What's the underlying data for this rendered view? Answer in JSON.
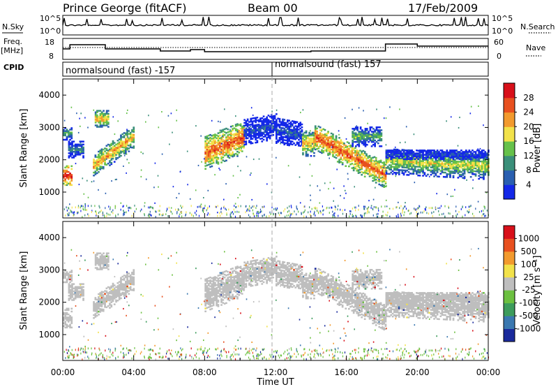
{
  "header": {
    "station": "Prince George (fitACF)",
    "beam": "Beam 00",
    "date": "17/Feb/2009"
  },
  "top_panel": {
    "nsky_label": "N.Sky",
    "nsky_top": "10^5",
    "nsky_bottom": "10^0",
    "nsearch_label": "N.Search",
    "nsearch_top": "10^5",
    "nsearch_bottom": "10^0",
    "freq_label_1": "Freq.",
    "freq_label_2": "[MHz]",
    "freq_top": "18",
    "freq_bottom": "8",
    "nave_label": "Nave",
    "nave_top": "60",
    "nave_bottom": "0",
    "cpid_label": "CPID",
    "cpid_1": "normalsound (fast) -157",
    "cpid_2": "normalsound (fast) 157"
  },
  "chart_data": [
    {
      "type": "heatmap",
      "name": "Power",
      "ylabel": "Slant Range [km]",
      "xlabel": "Time UT",
      "ylim": [
        200,
        4500
      ],
      "xlim_hours": [
        0,
        24
      ],
      "y_ticks": [
        "1000",
        "2000",
        "3000",
        "4000"
      ],
      "x_ticks": [
        "00:00",
        "04:00",
        "08:00",
        "12:00",
        "16:00",
        "20:00",
        "00:00"
      ],
      "colorbar_label": "Power [dB]",
      "colorbar_ticks": [
        "4",
        "8",
        "12",
        "16",
        "20",
        "24",
        "28"
      ],
      "colorbar_colors": [
        "#1428e8",
        "#2a5fb0",
        "#3b8f7a",
        "#66c14a",
        "#f2e24a",
        "#f29a2e",
        "#e8501f",
        "#d8101a"
      ],
      "echo_regions": [
        {
          "start_h": 0.0,
          "end_h": 0.5,
          "center_km": 1500,
          "thickness_km": 300,
          "slope_km_per_h": 0,
          "level": 7
        },
        {
          "start_h": 0.0,
          "end_h": 0.5,
          "center_km": 2800,
          "thickness_km": 200,
          "slope_km_per_h": 0,
          "level": 3
        },
        {
          "start_h": 0.3,
          "end_h": 1.2,
          "center_km": 2300,
          "thickness_km": 250,
          "slope_km_per_h": 0,
          "level": 2
        },
        {
          "start_h": 1.7,
          "end_h": 4.0,
          "center_km": 1800,
          "thickness_km": 350,
          "slope_km_per_h": 400,
          "level": 5
        },
        {
          "start_h": 1.8,
          "end_h": 2.6,
          "center_km": 3250,
          "thickness_km": 250,
          "slope_km_per_h": 0,
          "level": 5
        },
        {
          "start_h": 8.0,
          "end_h": 10.2,
          "center_km": 2200,
          "thickness_km": 500,
          "slope_km_per_h": 220,
          "level": 6
        },
        {
          "start_h": 10.2,
          "end_h": 12.0,
          "center_km": 2850,
          "thickness_km": 400,
          "slope_km_per_h": 100,
          "level": 1
        },
        {
          "start_h": 12.0,
          "end_h": 13.5,
          "center_km": 2900,
          "thickness_km": 400,
          "slope_km_per_h": -100,
          "level": 1
        },
        {
          "start_h": 13.5,
          "end_h": 14.2,
          "center_km": 2500,
          "thickness_km": 400,
          "slope_km_per_h": 0,
          "level": 5
        },
        {
          "start_h": 14.2,
          "end_h": 18.2,
          "center_km": 2700,
          "thickness_km": 400,
          "slope_km_per_h": -300,
          "level": 6
        },
        {
          "start_h": 16.3,
          "end_h": 18.0,
          "center_km": 2700,
          "thickness_km": 300,
          "slope_km_per_h": 0,
          "level": 3
        },
        {
          "start_h": 18.2,
          "end_h": 24.0,
          "center_km": 1950,
          "thickness_km": 400,
          "slope_km_per_h": -30,
          "level": 4
        },
        {
          "start_h": 18.2,
          "end_h": 24.0,
          "center_km": 2150,
          "thickness_km": 150,
          "slope_km_per_h": 0,
          "level": 1
        }
      ]
    },
    {
      "type": "heatmap",
      "name": "Velocity",
      "ylabel": "Slant Range [km]",
      "xlabel": "Time UT",
      "ylim": [
        200,
        4500
      ],
      "xlim_hours": [
        0,
        24
      ],
      "y_ticks": [
        "1000",
        "2000",
        "3000",
        "4000"
      ],
      "x_ticks": [
        "00:00",
        "04:00",
        "08:00",
        "12:00",
        "16:00",
        "20:00",
        "00:00"
      ],
      "colorbar_label": "Velocity [m s⁻¹]",
      "colorbar_ticks": [
        "1000",
        "500",
        "100",
        "25",
        "-25",
        "-100",
        "-500",
        "-1000"
      ],
      "colorbar_colors": [
        "#1a2a9c",
        "#3a78b0",
        "#3d9c5c",
        "#6cc040",
        "#bebebe",
        "#f2e24a",
        "#f29a2e",
        "#e8501f",
        "#d8101a"
      ],
      "ground_scatter_color": "#bebebe"
    }
  ],
  "time_axis_title": "Time UT"
}
